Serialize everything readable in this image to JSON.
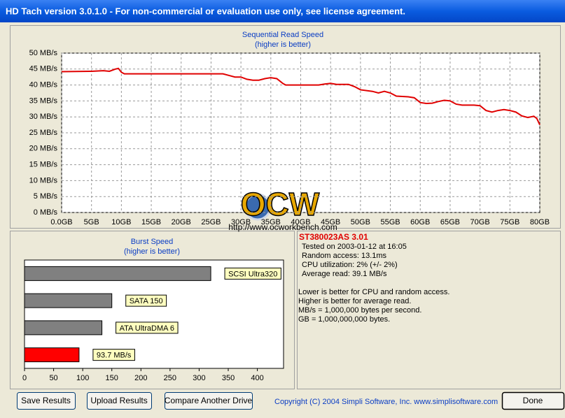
{
  "window": {
    "title": "HD Tach version 3.0.1.0  - For non-commercial or evaluation use only, see license agreement."
  },
  "chart_data": [
    {
      "type": "line",
      "title": "Sequential Read Speed",
      "subtitle": "(higher is better)",
      "color": "#e00000",
      "grid": true,
      "x": [
        0,
        5,
        7,
        8,
        9,
        9.5,
        10,
        10.5,
        15,
        20,
        25,
        27,
        28,
        29,
        30,
        31,
        32,
        33,
        34,
        35,
        36,
        37,
        37.5,
        40,
        43,
        44,
        45,
        46,
        48,
        49,
        50,
        52,
        53,
        54,
        55,
        56,
        58,
        59,
        60,
        61,
        62,
        63,
        64,
        65,
        66,
        67,
        69,
        70,
        71,
        72,
        73,
        74,
        75,
        76,
        77,
        78,
        79,
        79.5,
        80
      ],
      "values": [
        44.2,
        44.3,
        44.5,
        44.3,
        45.0,
        45.2,
        44.0,
        43.5,
        43.5,
        43.5,
        43.5,
        43.5,
        43.0,
        42.5,
        42.5,
        41.8,
        41.5,
        41.5,
        42.0,
        42.3,
        42.0,
        40.5,
        40.0,
        40.0,
        40.0,
        40.3,
        40.5,
        40.2,
        40.2,
        39.5,
        38.5,
        38.0,
        37.5,
        38.0,
        37.5,
        36.5,
        36.3,
        36.0,
        34.5,
        34.2,
        34.3,
        34.8,
        35.2,
        35.0,
        34.0,
        33.7,
        33.7,
        33.5,
        32.0,
        31.5,
        32.0,
        32.3,
        32.0,
        31.5,
        30.3,
        29.8,
        30.2,
        29.5,
        27.5
      ],
      "xlim": [
        0,
        80
      ],
      "xticks": [
        {
          "value": 0,
          "label": "0.0GB"
        },
        {
          "value": 5,
          "label": "5GB"
        },
        {
          "value": 10,
          "label": "10GB"
        },
        {
          "value": 15,
          "label": "15GB"
        },
        {
          "value": 20,
          "label": "20GB"
        },
        {
          "value": 25,
          "label": "25GB"
        },
        {
          "value": 30,
          "label": "30GB"
        },
        {
          "value": 35,
          "label": "35GB"
        },
        {
          "value": 40,
          "label": "40GB"
        },
        {
          "value": 45,
          "label": "45GB"
        },
        {
          "value": 50,
          "label": "50GB"
        },
        {
          "value": 55,
          "label": "55GB"
        },
        {
          "value": 60,
          "label": "60GB"
        },
        {
          "value": 65,
          "label": "65GB"
        },
        {
          "value": 70,
          "label": "70GB"
        },
        {
          "value": 75,
          "label": "75GB"
        },
        {
          "value": 80,
          "label": "80GB"
        }
      ],
      "ylim": [
        0,
        50
      ],
      "yticks": [
        {
          "value": 0,
          "label": "0 MB/s"
        },
        {
          "value": 5,
          "label": "5 MB/s"
        },
        {
          "value": 10,
          "label": "10 MB/s"
        },
        {
          "value": 15,
          "label": "15 MB/s"
        },
        {
          "value": 20,
          "label": "20 MB/s"
        },
        {
          "value": 25,
          "label": "25 MB/s"
        },
        {
          "value": 30,
          "label": "30 MB/s"
        },
        {
          "value": 35,
          "label": "35 MB/s"
        },
        {
          "value": 40,
          "label": "40 MB/s"
        },
        {
          "value": 45,
          "label": "45 MB/s"
        },
        {
          "value": 50,
          "label": "50 MB/s"
        }
      ]
    },
    {
      "type": "hbar",
      "title": "Burst Speed",
      "subtitle": "(higher is better)",
      "categories": [
        "SCSI Ultra320",
        "SATA 150",
        "ATA UltraDMA 6",
        null
      ],
      "values": [
        320,
        150,
        133,
        93.7
      ],
      "value_labels": [
        null,
        null,
        null,
        "93.7 MB/s"
      ],
      "colors": [
        "#808080",
        "#808080",
        "#808080",
        "#ff0000"
      ],
      "xlim": [
        0,
        445
      ],
      "xticks": [
        0,
        50,
        100,
        150,
        200,
        250,
        300,
        350,
        400
      ]
    }
  ],
  "watermark": {
    "logo": "OCW",
    "url": "http://www.ocworkbench.com"
  },
  "info": {
    "drive": "ST380023AS  3.01",
    "lines": [
      "Tested on 2003-01-12 at 16:05",
      "Random access: 13.1ms",
      "CPU utilization: 2% (+/- 2%)",
      "Average read: 39.1 MB/s"
    ],
    "notes": [
      "Lower is better for CPU and random access.",
      "Higher is better for average read.",
      "MB/s = 1,000,000 bytes per second.",
      "GB = 1,000,000,000 bytes."
    ]
  },
  "buttons": [
    "Save Results",
    "Upload Results",
    "Compare Another Drive",
    "Done"
  ],
  "copyright": "Copyright (C) 2004 Simpli Software, Inc. www.simplisoftware.com"
}
